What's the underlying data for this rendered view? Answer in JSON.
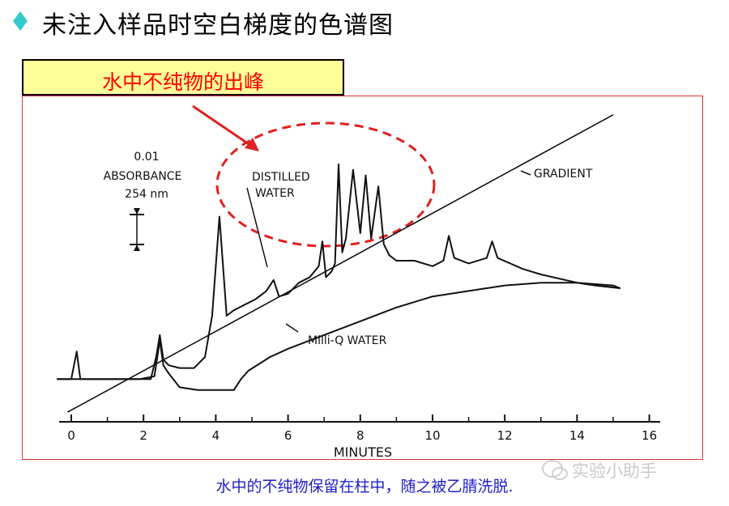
{
  "title": "未注入样品时空白梯度的色谱图",
  "callout": "水中不纯物的出峰",
  "caption": "水中的不纯物保留在柱中，随之被乙腈洗脱.",
  "watermark": "实验小助手",
  "colors": {
    "accent": "#ff0000",
    "callout_bg": "#ffff99",
    "caption": "#1e1ec8",
    "bullet": "#33cccc"
  },
  "chart_data": {
    "type": "line",
    "title": "",
    "xlabel": "MINUTES",
    "ylabel": "",
    "xlim": [
      0,
      16
    ],
    "xticks": [
      0,
      2,
      4,
      6,
      8,
      10,
      12,
      14,
      16
    ],
    "scale_label": [
      "0.01",
      "ABSORBANCE",
      "254 nm"
    ],
    "annotations": [
      "DISTILLED",
      "WATER",
      "GRADIENT",
      "Milli-Q WATER"
    ],
    "series": [
      {
        "name": "DISTILLED WATER",
        "x": [
          -0.4,
          0,
          2.2,
          2.35,
          2.45,
          2.55,
          2.7,
          3.0,
          3.4,
          3.7,
          3.9,
          4.1,
          4.3,
          4.5,
          4.8,
          5.1,
          5.4,
          5.6,
          5.75,
          6.0,
          6.3,
          6.6,
          6.85,
          6.95,
          7.05,
          7.2,
          7.3,
          7.4,
          7.5,
          7.6,
          7.8,
          8.0,
          8.15,
          8.3,
          8.5,
          8.65,
          8.8,
          9.0,
          9.5,
          10.0,
          10.3,
          10.45,
          10.6,
          11.0,
          11.5,
          11.65,
          11.8,
          12.5,
          13.0,
          14.0,
          15.0,
          15.2
        ],
        "y": [
          2,
          2,
          2,
          10,
          18,
          9,
          7,
          6,
          6,
          10,
          25,
          61,
          25,
          27,
          29,
          31,
          34,
          38,
          32,
          33,
          37,
          39,
          43,
          52,
          39,
          41,
          44,
          80,
          48,
          53,
          78,
          55,
          76,
          53,
          72,
          51,
          47,
          45,
          45,
          43,
          45,
          54,
          46,
          44,
          46,
          52,
          46,
          42,
          40,
          37,
          36,
          35
        ]
      },
      {
        "name": "Milli-Q WATER",
        "x": [
          -0.4,
          0.0,
          0.15,
          0.25,
          1.9,
          2.3,
          2.45,
          2.55,
          2.7,
          3.0,
          3.5,
          4.0,
          4.5,
          4.7,
          4.9,
          5.5,
          6.0,
          7.0,
          8.0,
          9.0,
          10.0,
          11.0,
          12.0,
          13.0,
          14.0,
          14.5,
          15.2
        ],
        "y": [
          2,
          2,
          12,
          2,
          2,
          3,
          16,
          7,
          4,
          -1,
          -2,
          -2,
          -2,
          2,
          5,
          10,
          13,
          18,
          23,
          28,
          32,
          34,
          36,
          37,
          37,
          36,
          35
        ]
      },
      {
        "name": "GRADIENT",
        "x": [
          -0.1,
          15.0
        ],
        "y": [
          -10,
          98
        ]
      }
    ]
  }
}
